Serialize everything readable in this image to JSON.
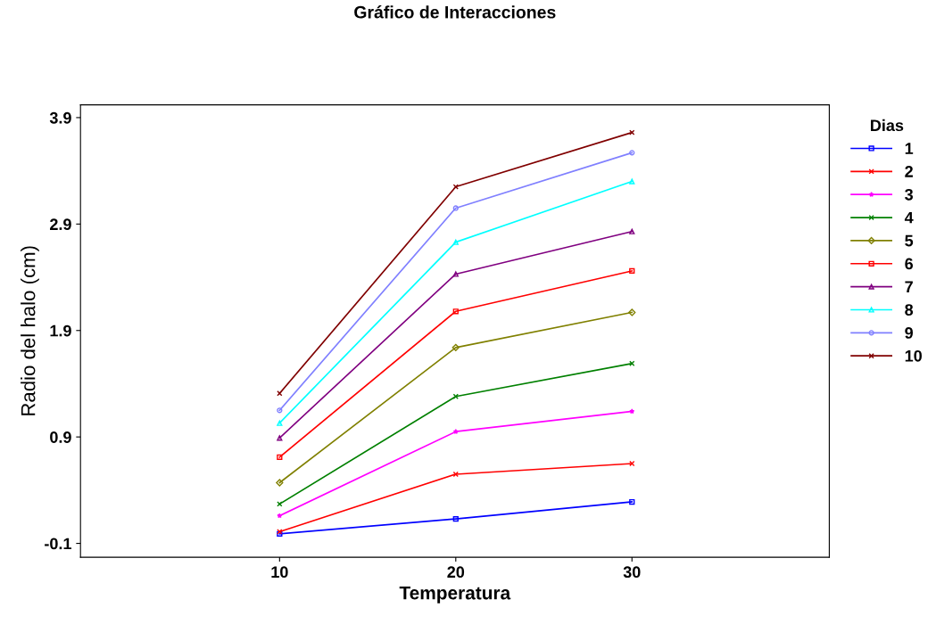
{
  "chart_data": {
    "type": "line",
    "title": "Gráfico de Interacciones",
    "xlabel": "Temperatura",
    "ylabel": "Radio del halo (cm)",
    "legend_title": "Dias",
    "x": [
      10,
      20,
      30
    ],
    "xlim": [
      -1.3,
      41.2
    ],
    "xticks": [
      10,
      20,
      30
    ],
    "ylim": [
      -0.23,
      4.02
    ],
    "yticks": [
      -0.1,
      0.9,
      1.9,
      2.9,
      3.9
    ],
    "grid": false,
    "legend": "right",
    "series": [
      {
        "name": "1",
        "color": "#0000ff",
        "marker": "square",
        "values": [
          -0.01,
          0.13,
          0.29
        ]
      },
      {
        "name": "2",
        "color": "#ff0000",
        "marker": "cross",
        "values": [
          0.01,
          0.55,
          0.65
        ]
      },
      {
        "name": "3",
        "color": "#ff00ff",
        "marker": "star",
        "values": [
          0.16,
          0.95,
          1.14
        ]
      },
      {
        "name": "4",
        "color": "#008000",
        "marker": "cross",
        "values": [
          0.27,
          1.28,
          1.59
        ]
      },
      {
        "name": "5",
        "color": "#808000",
        "marker": "diamond",
        "values": [
          0.47,
          1.74,
          2.07
        ]
      },
      {
        "name": "6",
        "color": "#ff0000",
        "marker": "square",
        "values": [
          0.71,
          2.08,
          2.46
        ]
      },
      {
        "name": "7",
        "color": "#800080",
        "marker": "triangle",
        "values": [
          0.89,
          2.43,
          2.83
        ]
      },
      {
        "name": "8",
        "color": "#00ffff",
        "marker": "triangle",
        "values": [
          1.03,
          2.73,
          3.3
        ]
      },
      {
        "name": "9",
        "color": "#8080ff",
        "marker": "circle",
        "values": [
          1.15,
          3.05,
          3.57
        ]
      },
      {
        "name": "10",
        "color": "#800000",
        "marker": "cross",
        "values": [
          1.31,
          3.25,
          3.76
        ]
      }
    ]
  }
}
